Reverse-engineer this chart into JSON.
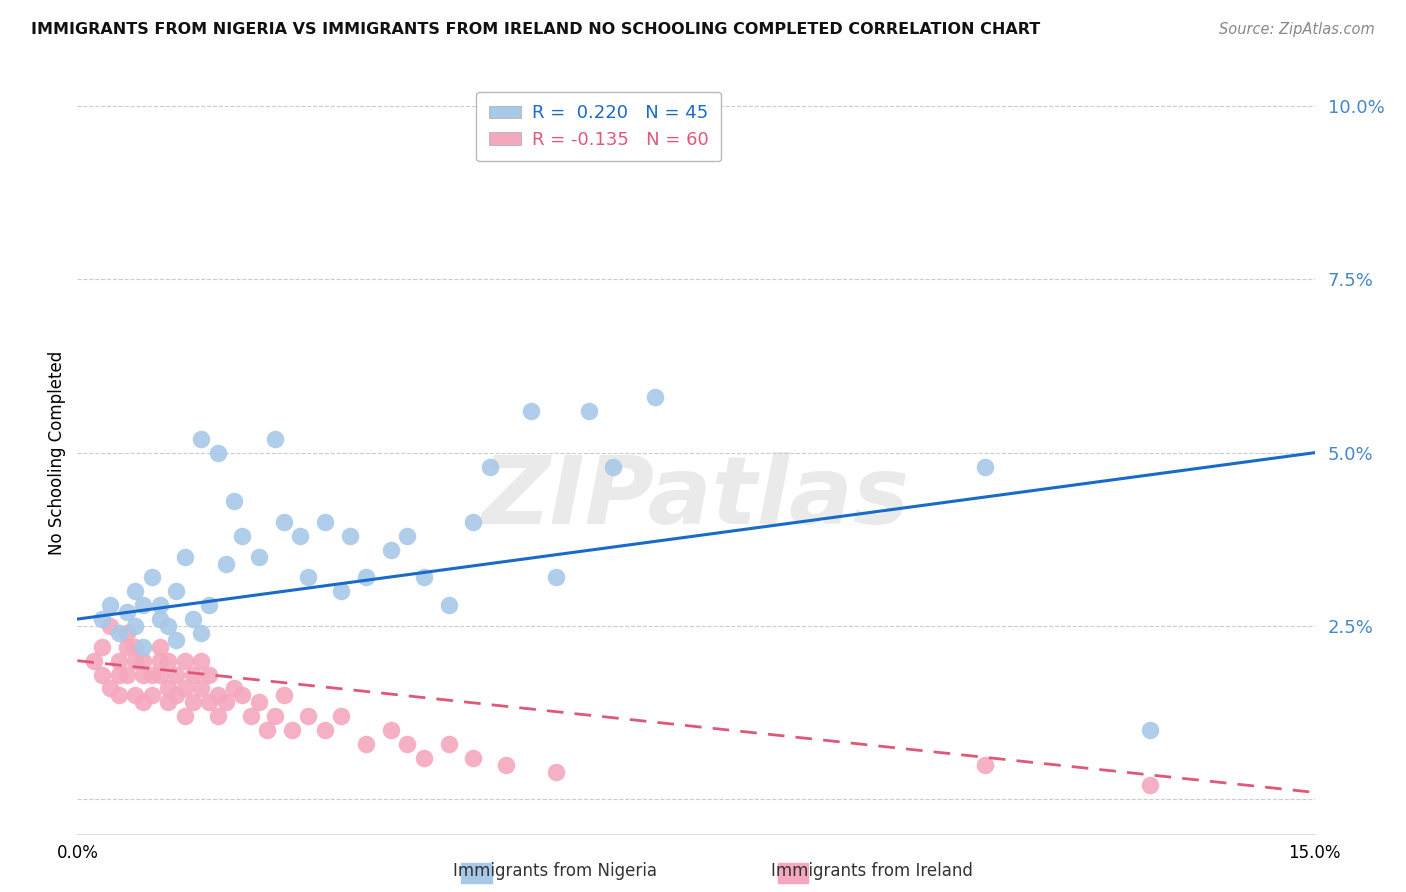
{
  "title": "IMMIGRANTS FROM NIGERIA VS IMMIGRANTS FROM IRELAND NO SCHOOLING COMPLETED CORRELATION CHART",
  "source": "Source: ZipAtlas.com",
  "ylabel": "No Schooling Completed",
  "yticks": [
    0.0,
    0.025,
    0.05,
    0.075,
    0.1
  ],
  "ytick_labels": [
    "",
    "2.5%",
    "5.0%",
    "7.5%",
    "10.0%"
  ],
  "xlim": [
    0.0,
    0.15
  ],
  "ylim": [
    -0.005,
    0.105
  ],
  "nigeria_color": "#a8c8e8",
  "ireland_color": "#f4a8be",
  "nigeria_line_color": "#1a6ac8",
  "ireland_line_color": "#e05878",
  "nigeria_R": 0.22,
  "nigeria_N": 45,
  "ireland_R": -0.135,
  "ireland_N": 60,
  "nigeria_scatter_x": [
    0.003,
    0.004,
    0.005,
    0.006,
    0.007,
    0.007,
    0.008,
    0.008,
    0.009,
    0.01,
    0.01,
    0.011,
    0.012,
    0.012,
    0.013,
    0.014,
    0.015,
    0.015,
    0.016,
    0.017,
    0.018,
    0.019,
    0.02,
    0.022,
    0.024,
    0.025,
    0.027,
    0.028,
    0.03,
    0.032,
    0.033,
    0.035,
    0.038,
    0.04,
    0.042,
    0.045,
    0.048,
    0.05,
    0.055,
    0.058,
    0.062,
    0.065,
    0.07,
    0.11,
    0.13
  ],
  "nigeria_scatter_y": [
    0.026,
    0.028,
    0.024,
    0.027,
    0.03,
    0.025,
    0.028,
    0.022,
    0.032,
    0.026,
    0.028,
    0.025,
    0.03,
    0.023,
    0.035,
    0.026,
    0.024,
    0.052,
    0.028,
    0.05,
    0.034,
    0.043,
    0.038,
    0.035,
    0.052,
    0.04,
    0.038,
    0.032,
    0.04,
    0.03,
    0.038,
    0.032,
    0.036,
    0.038,
    0.032,
    0.028,
    0.04,
    0.048,
    0.056,
    0.032,
    0.056,
    0.048,
    0.058,
    0.048,
    0.01
  ],
  "ireland_scatter_x": [
    0.002,
    0.003,
    0.003,
    0.004,
    0.004,
    0.005,
    0.005,
    0.005,
    0.006,
    0.006,
    0.006,
    0.007,
    0.007,
    0.007,
    0.008,
    0.008,
    0.008,
    0.009,
    0.009,
    0.01,
    0.01,
    0.01,
    0.011,
    0.011,
    0.011,
    0.012,
    0.012,
    0.013,
    0.013,
    0.013,
    0.014,
    0.014,
    0.015,
    0.015,
    0.016,
    0.016,
    0.017,
    0.017,
    0.018,
    0.019,
    0.02,
    0.021,
    0.022,
    0.023,
    0.024,
    0.025,
    0.026,
    0.028,
    0.03,
    0.032,
    0.035,
    0.038,
    0.04,
    0.042,
    0.045,
    0.048,
    0.052,
    0.058,
    0.11,
    0.13
  ],
  "ireland_scatter_y": [
    0.02,
    0.018,
    0.022,
    0.016,
    0.025,
    0.018,
    0.02,
    0.015,
    0.022,
    0.018,
    0.024,
    0.02,
    0.015,
    0.022,
    0.018,
    0.02,
    0.014,
    0.018,
    0.015,
    0.022,
    0.018,
    0.02,
    0.016,
    0.02,
    0.014,
    0.018,
    0.015,
    0.02,
    0.016,
    0.012,
    0.018,
    0.014,
    0.016,
    0.02,
    0.014,
    0.018,
    0.015,
    0.012,
    0.014,
    0.016,
    0.015,
    0.012,
    0.014,
    0.01,
    0.012,
    0.015,
    0.01,
    0.012,
    0.01,
    0.012,
    0.008,
    0.01,
    0.008,
    0.006,
    0.008,
    0.006,
    0.005,
    0.004,
    0.005,
    0.002
  ],
  "watermark_text": "ZIPatlas",
  "background_color": "#ffffff",
  "grid_color": "#cccccc",
  "tick_color": "#4488cc",
  "nigeria_legend_label": "Immigrants from Nigeria",
  "ireland_legend_label": "Immigrants from Ireland"
}
